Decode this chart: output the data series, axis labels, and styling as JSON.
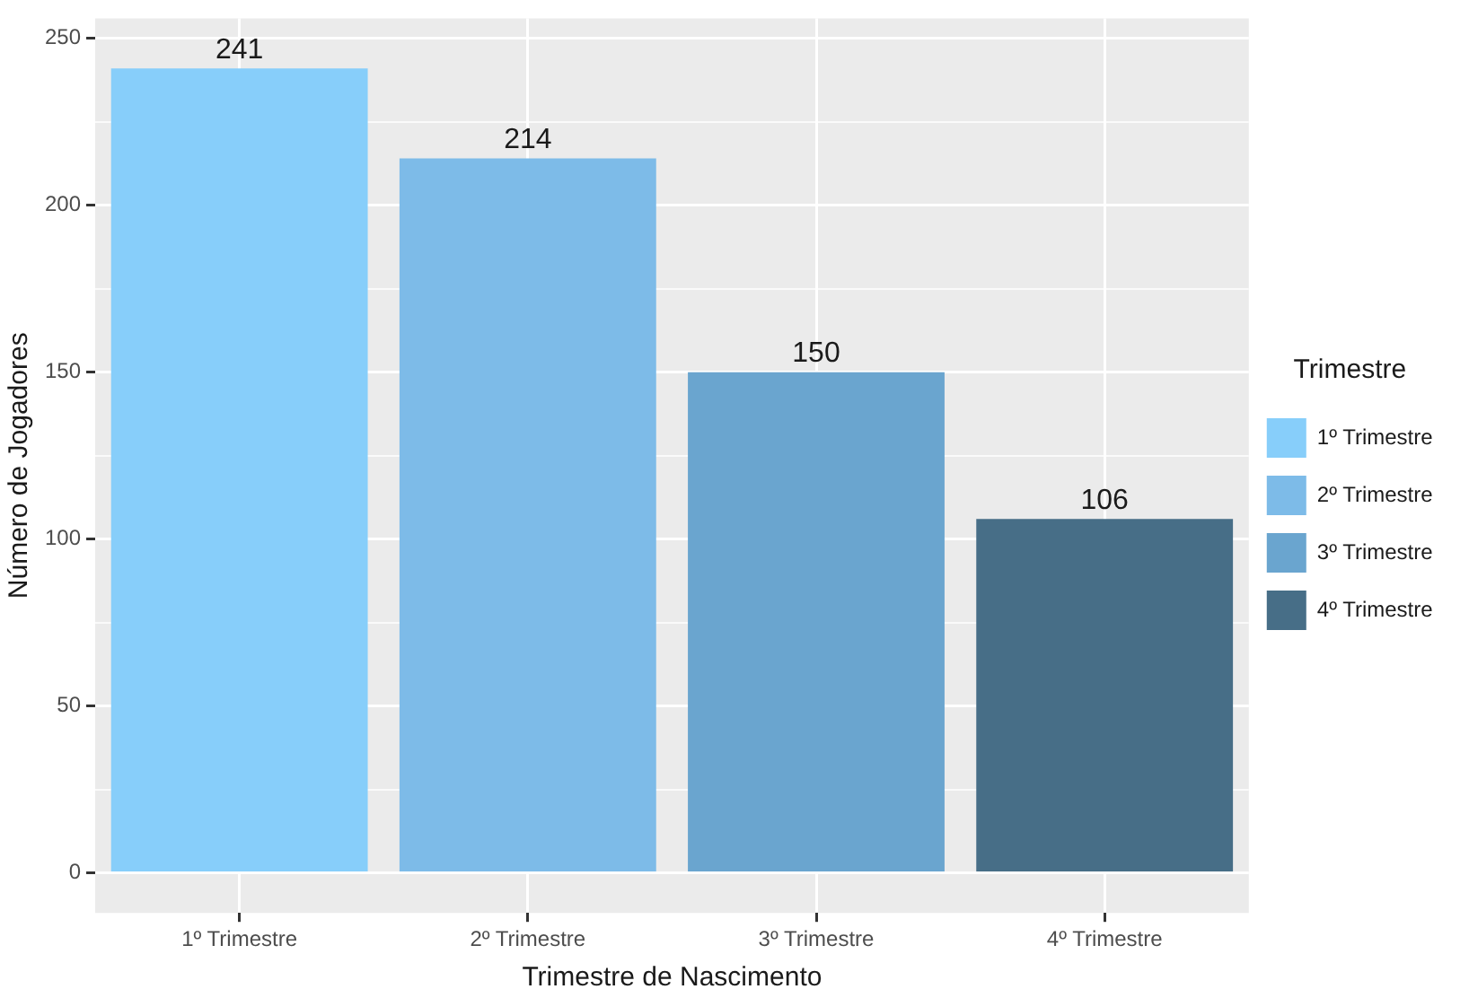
{
  "chart_data": {
    "type": "bar",
    "xlabel": "Trimestre de Nascimento",
    "ylabel": "Número de Jogadores",
    "legend_title": "Trimestre",
    "categories": [
      "1º Trimestre",
      "2º Trimestre",
      "3º Trimestre",
      "4º Trimestre"
    ],
    "series": [
      {
        "name": "1º Trimestre",
        "color": "#87cefa",
        "values": [
          241,
          null,
          null,
          null
        ]
      },
      {
        "name": "2º Trimestre",
        "color": "#7dbbe8",
        "values": [
          null,
          214,
          null,
          null
        ]
      },
      {
        "name": "3º Trimestre",
        "color": "#6aa5cf",
        "values": [
          null,
          null,
          150,
          null
        ]
      },
      {
        "name": "4º Trimestre",
        "color": "#476e87",
        "values": [
          null,
          null,
          null,
          106
        ]
      }
    ],
    "ylim": [
      -12,
      256
    ],
    "yticks": [
      0,
      {
        "value": 25,
        "label": null
      },
      50,
      {
        "value": 75,
        "label": null
      },
      100,
      {
        "value": 125,
        "label": null
      },
      150,
      {
        "value": 175,
        "label": null
      },
      200,
      {
        "value": 225,
        "label": null
      },
      250
    ],
    "grid": true,
    "legend": "right",
    "data_labels": true
  }
}
